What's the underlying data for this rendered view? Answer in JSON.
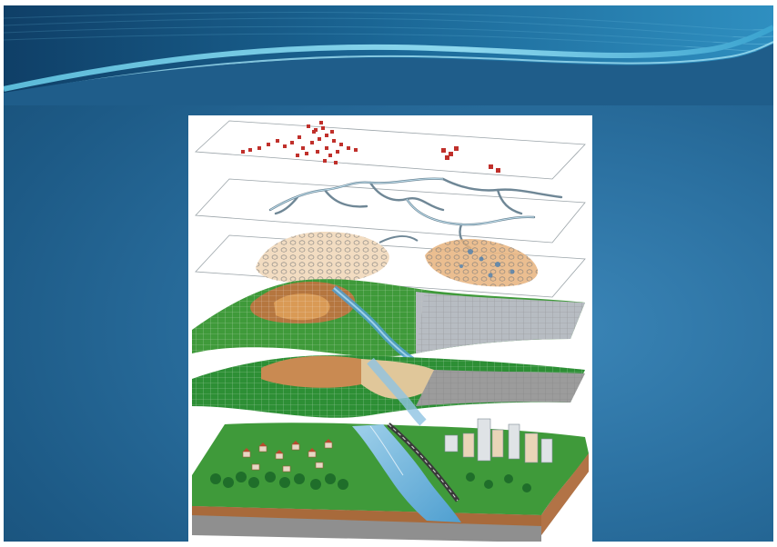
{
  "slide": {
    "background_color": "#1f5d8a",
    "wave_colors": [
      "#0f3f67",
      "#2f8fc0",
      "#7fd0ea"
    ]
  },
  "figure": {
    "layers": [
      {
        "name": "points-layer",
        "color": "#c0302b"
      },
      {
        "name": "roads-layer",
        "color": "#6f8796"
      },
      {
        "name": "parcels-layer",
        "color": "#d7a36a"
      },
      {
        "name": "elevation-layer",
        "color": "#3f9a3a"
      },
      {
        "name": "landuse-layer",
        "color": "#2d8f35"
      },
      {
        "name": "terrain-block",
        "color": "#3f9a3a"
      }
    ]
  }
}
